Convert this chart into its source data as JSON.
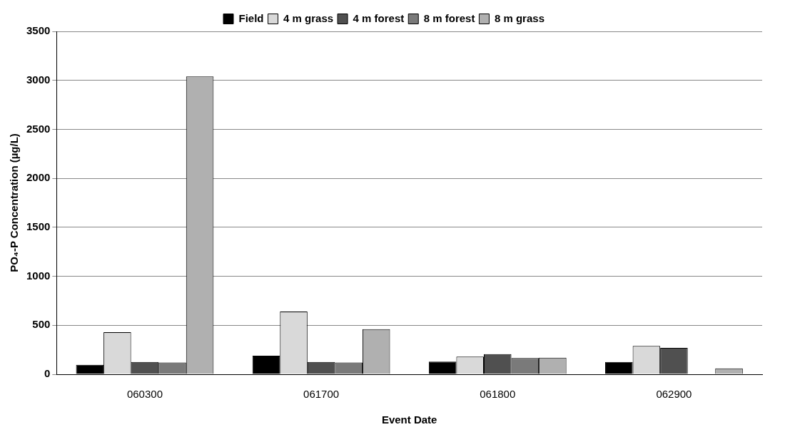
{
  "chart_data": {
    "type": "bar",
    "xlabel": "Event Date",
    "ylabel": "PO₄-P Concentration (µg/L)",
    "categories": [
      "060300",
      "061700",
      "061800",
      "062900"
    ],
    "series": [
      {
        "name": "Field",
        "color": "#000000",
        "values": [
          97,
          190,
          130,
          125
        ]
      },
      {
        "name": "4 m grass",
        "color": "#d9d9d9",
        "values": [
          430,
          640,
          180,
          290
        ]
      },
      {
        "name": "4 m forest",
        "color": "#505050",
        "values": [
          125,
          125,
          205,
          270
        ]
      },
      {
        "name": "8 m forest",
        "color": "#7a7a7a",
        "values": [
          120,
          120,
          165,
          null
        ]
      },
      {
        "name": "8 m grass",
        "color": "#b0b0b0",
        "values": [
          3040,
          460,
          170,
          60
        ]
      }
    ],
    "ylim": [
      0,
      3500
    ],
    "yticks": [
      0,
      500,
      1000,
      1500,
      2000,
      2500,
      3000,
      3500
    ],
    "grid": "y",
    "legend": "top"
  }
}
